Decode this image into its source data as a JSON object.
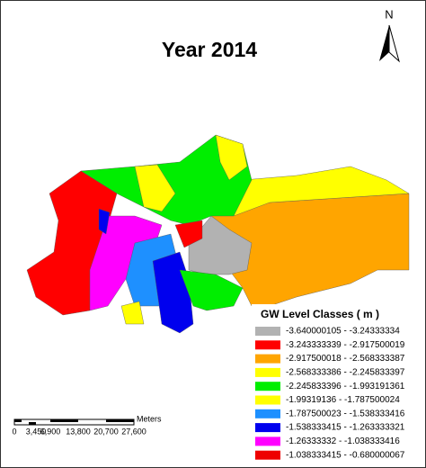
{
  "title": "Year 2014",
  "north_label": "N",
  "legend": {
    "title": "GW Level Classes ( m )",
    "classes": [
      {
        "label": "-3.640000105 - -3.24333334",
        "color": "#b2b2b2"
      },
      {
        "label": "-3.243333339 - -2.917500019",
        "color": "#ff0000"
      },
      {
        "label": "-2.917500018 - -2.568333387",
        "color": "#ffa500"
      },
      {
        "label": "-2.568333386 - -2.245833397",
        "color": "#ffff00"
      },
      {
        "label": "-2.245833396 - -1.993191361",
        "color": "#00ee00"
      },
      {
        "label": "-1.99319136 - -1.787500024",
        "color": "#ffff00"
      },
      {
        "label": "-1.787500023 - -1.538333416",
        "color": "#1e90ff"
      },
      {
        "label": "-1.538333415 - -1.263333321",
        "color": "#0000ee"
      },
      {
        "label": "-1.26333332 - -1.038333416",
        "color": "#ff00ff"
      },
      {
        "label": "-1.038333415 - -0.680000067",
        "color": "#ee0000"
      }
    ]
  },
  "scale_bar": {
    "labels": [
      "0",
      "3,450",
      "6,900",
      "13,800",
      "20,700",
      "27,600"
    ],
    "unit": "Meters"
  }
}
